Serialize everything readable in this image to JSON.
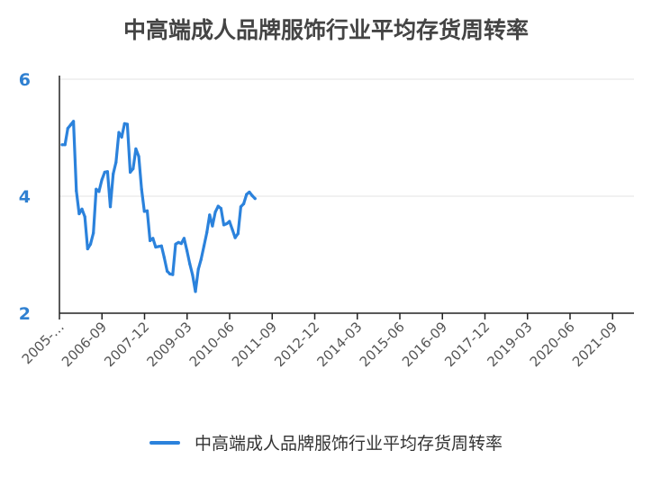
{
  "chart_data": {
    "type": "line",
    "title": "中高端成人品牌服饰行业平均存货周转率",
    "xlabel": "",
    "ylabel": "",
    "ylim": [
      2,
      6
    ],
    "yticks": [
      2,
      4,
      6
    ],
    "xtick_labels": [
      "2005-…",
      "2006-09",
      "2007-12",
      "2009-03",
      "2010-06",
      "2011-09",
      "2012-12",
      "2014-03",
      "2015-06",
      "2016-09",
      "2017-12",
      "2019-03",
      "2020-06",
      "2021-09"
    ],
    "grid": true,
    "legend_position": "bottom",
    "series": [
      {
        "name": "中高端成人品牌服饰行业平均存货周转率",
        "color": "#2b82dc",
        "values": [
          4.88,
          4.88,
          5.16,
          5.22,
          5.28,
          4.09,
          3.7,
          3.78,
          3.65,
          3.1,
          3.18,
          3.37,
          4.12,
          4.08,
          4.28,
          4.41,
          4.42,
          3.82,
          4.38,
          4.58,
          5.09,
          5.01,
          5.24,
          5.23,
          4.41,
          4.47,
          4.81,
          4.68,
          4.12,
          3.74,
          3.75,
          3.24,
          3.28,
          3.13,
          3.14,
          3.15,
          2.95,
          2.72,
          2.67,
          2.66,
          3.18,
          3.21,
          3.19,
          3.28,
          3.07,
          2.84,
          2.65,
          2.37,
          2.75,
          2.92,
          3.15,
          3.38,
          3.68,
          3.49,
          3.73,
          3.83,
          3.79,
          3.51,
          3.53,
          3.57,
          3.43,
          3.29,
          3.36,
          3.82,
          3.87,
          4.03,
          4.07,
          4.01,
          3.96
        ]
      }
    ]
  }
}
